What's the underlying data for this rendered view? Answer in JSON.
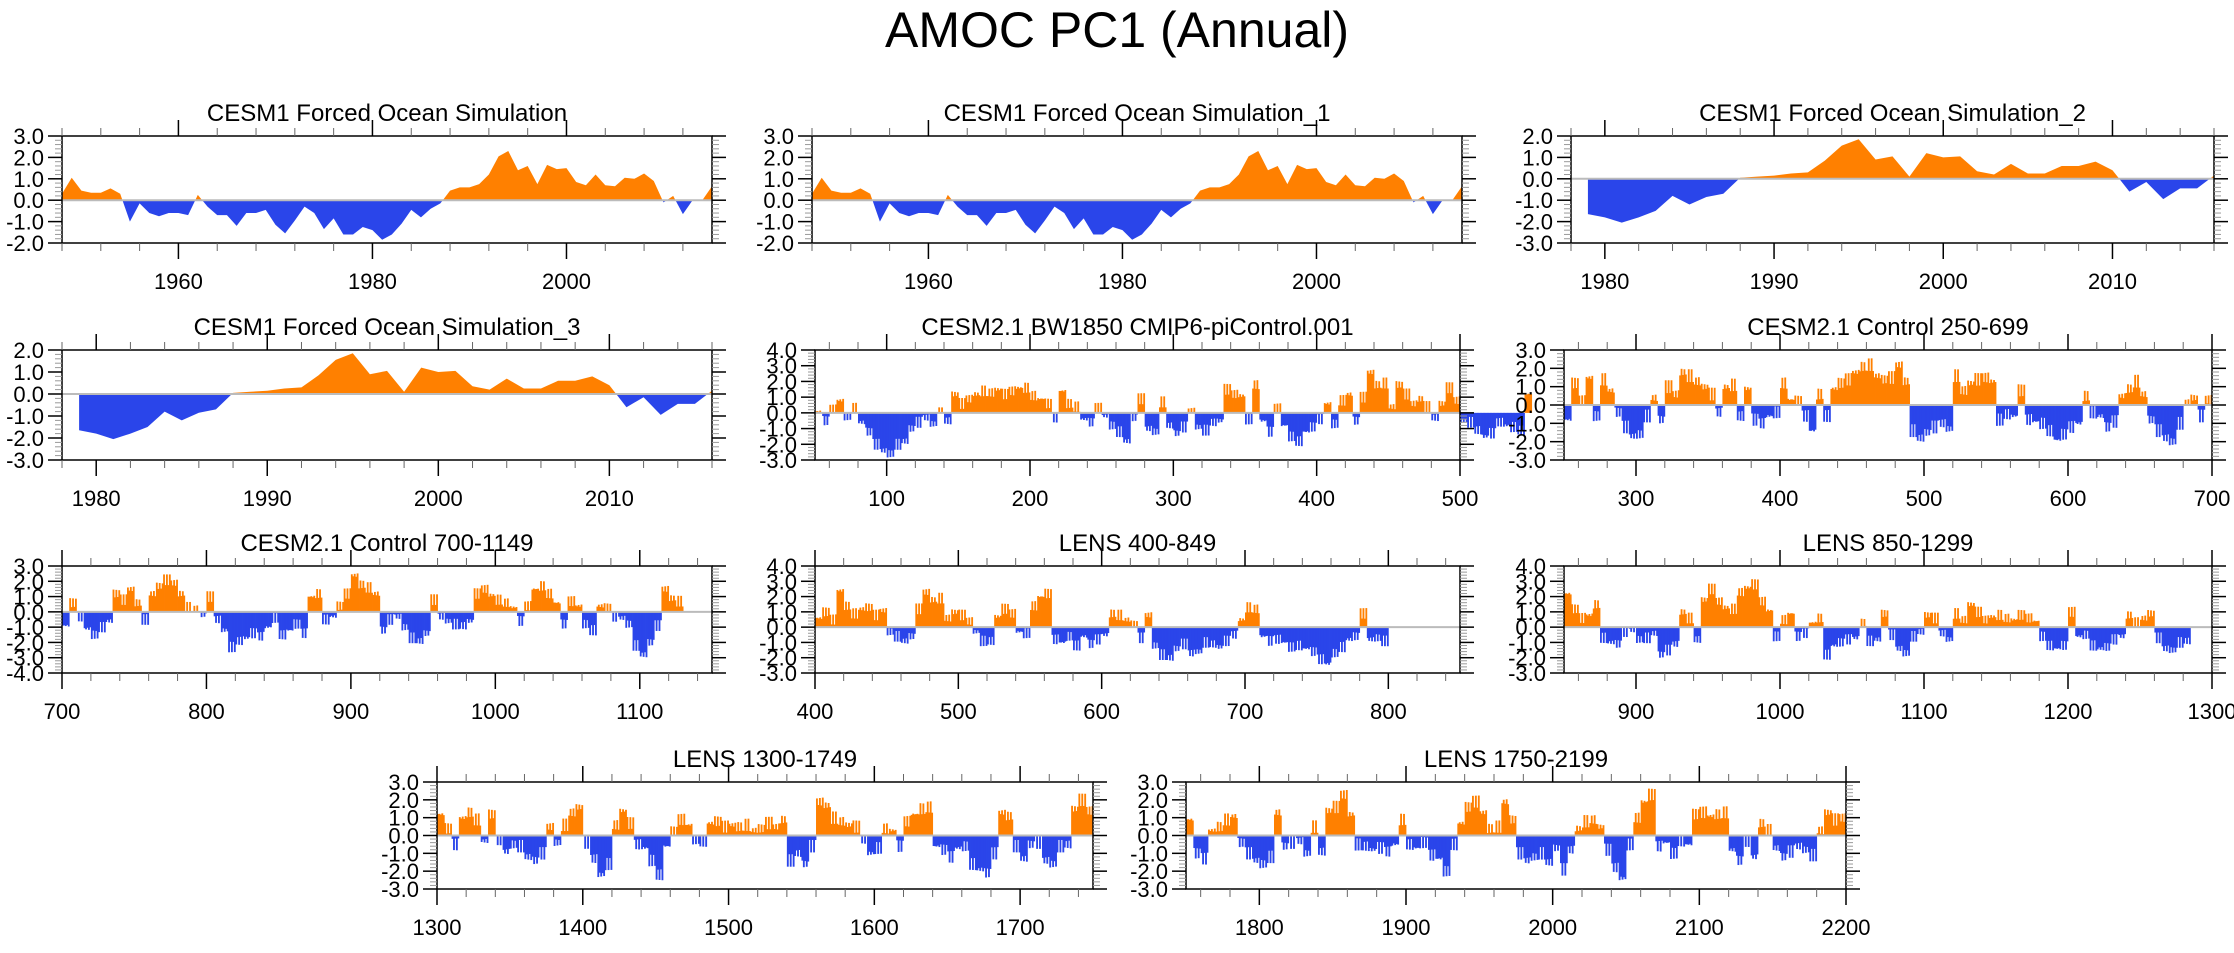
{
  "title": "AMOC PC1 (Annual)",
  "colors": {
    "positive": "#ff8000",
    "negative": "#2a45ea",
    "zero_line": "#bbbbbb",
    "frame": "#000000"
  },
  "chart_data": [
    {
      "type": "area",
      "title": "CESM1 Forced Ocean Simulation",
      "xlim": [
        1948,
        2015
      ],
      "ylim": [
        -2.0,
        3.0
      ],
      "xticks": [
        1960,
        1980,
        2000
      ],
      "yticks": [
        -2.0,
        -1.0,
        0.0,
        1.0,
        2.0,
        3.0
      ],
      "x_start": 1948,
      "x_step": 1,
      "values": [
        0.3,
        1.05,
        0.45,
        0.35,
        0.35,
        0.55,
        0.3,
        -1.0,
        -0.15,
        -0.6,
        -0.75,
        -0.6,
        -0.6,
        -0.7,
        0.25,
        -0.3,
        -0.7,
        -0.7,
        -1.2,
        -0.6,
        -0.6,
        -0.45,
        -1.15,
        -1.55,
        -0.95,
        -0.3,
        -0.6,
        -1.35,
        -0.85,
        -1.6,
        -1.6,
        -1.25,
        -1.4,
        -1.85,
        -1.6,
        -1.1,
        -0.45,
        -0.8,
        -0.4,
        -0.15,
        0.45,
        0.6,
        0.6,
        0.75,
        1.2,
        2.05,
        2.3,
        1.4,
        1.6,
        0.75,
        1.65,
        1.45,
        1.5,
        0.85,
        0.7,
        1.2,
        0.7,
        0.65,
        1.05,
        1.0,
        1.25,
        0.9,
        -0.1,
        0.2,
        -0.65,
        0.0,
        0.0,
        0.65
      ]
    },
    {
      "type": "area",
      "title": "CESM1 Forced Ocean Simulation_1",
      "xlim": [
        1948,
        2015
      ],
      "ylim": [
        -2.0,
        3.0
      ],
      "xticks": [
        1960,
        1980,
        2000
      ],
      "yticks": [
        -2.0,
        -1.0,
        0.0,
        1.0,
        2.0,
        3.0
      ],
      "x_start": 1948,
      "x_step": 1,
      "values": [
        0.3,
        1.05,
        0.45,
        0.35,
        0.35,
        0.55,
        0.3,
        -1.0,
        -0.15,
        -0.6,
        -0.75,
        -0.6,
        -0.6,
        -0.7,
        0.25,
        -0.3,
        -0.7,
        -0.7,
        -1.2,
        -0.6,
        -0.6,
        -0.45,
        -1.15,
        -1.55,
        -0.95,
        -0.3,
        -0.6,
        -1.35,
        -0.85,
        -1.6,
        -1.6,
        -1.25,
        -1.4,
        -1.85,
        -1.6,
        -1.1,
        -0.45,
        -0.8,
        -0.4,
        -0.15,
        0.45,
        0.6,
        0.6,
        0.75,
        1.2,
        2.05,
        2.3,
        1.4,
        1.6,
        0.75,
        1.65,
        1.45,
        1.5,
        0.85,
        0.7,
        1.2,
        0.7,
        0.65,
        1.05,
        1.0,
        1.25,
        0.9,
        -0.1,
        0.2,
        -0.65,
        0.0,
        0.0,
        0.65
      ]
    },
    {
      "type": "area",
      "title": "CESM1 Forced Ocean Simulation_2",
      "xlim": [
        1978,
        2016
      ],
      "ylim": [
        -3.0,
        2.0
      ],
      "xticks": [
        1980,
        1990,
        2000,
        2010
      ],
      "yticks": [
        -3.0,
        -2.0,
        -1.0,
        0.0,
        1.0,
        2.0
      ],
      "x_start": 1979,
      "x_step": 1,
      "values": [
        -1.65,
        -1.8,
        -2.05,
        -1.8,
        -1.5,
        -0.8,
        -1.2,
        -0.85,
        -0.7,
        0.05,
        0.1,
        0.15,
        0.25,
        0.3,
        0.85,
        1.55,
        1.85,
        0.9,
        1.05,
        0.1,
        1.2,
        1.0,
        1.05,
        0.35,
        0.2,
        0.7,
        0.25,
        0.25,
        0.6,
        0.6,
        0.8,
        0.4,
        -0.6,
        -0.15,
        -0.95,
        -0.45,
        -0.45,
        0.15
      ]
    },
    {
      "type": "area",
      "title": "CESM1 Forced Ocean Simulation_3",
      "xlim": [
        1978,
        2016
      ],
      "ylim": [
        -3.0,
        2.0
      ],
      "xticks": [
        1980,
        1990,
        2000,
        2010
      ],
      "yticks": [
        -3.0,
        -2.0,
        -1.0,
        0.0,
        1.0,
        2.0
      ],
      "x_start": 1979,
      "x_step": 1,
      "values": [
        -1.65,
        -1.8,
        -2.05,
        -1.8,
        -1.5,
        -0.8,
        -1.2,
        -0.85,
        -0.7,
        0.05,
        0.1,
        0.15,
        0.25,
        0.3,
        0.85,
        1.55,
        1.85,
        0.9,
        1.05,
        0.1,
        1.2,
        1.0,
        1.05,
        0.35,
        0.2,
        0.7,
        0.25,
        0.25,
        0.6,
        0.6,
        0.8,
        0.4,
        -0.6,
        -0.15,
        -0.95,
        -0.45,
        -0.45,
        0.15
      ]
    },
    {
      "type": "bar",
      "title": "CESM2.1 BW1850 CMIP6-piControl.001",
      "xlim": [
        50,
        500
      ],
      "ylim": [
        -3.0,
        4.0
      ],
      "xticks": [
        100,
        200,
        300,
        400,
        500
      ],
      "yticks": [
        -3.0,
        -2.0,
        -1.0,
        0.0,
        1.0,
        2.0,
        3.0,
        4.0
      ],
      "x_start": 50,
      "x_step": 5,
      "values": [
        0.1,
        -0.5,
        0.2,
        0.8,
        -0.2,
        0.3,
        -0.6,
        -1.2,
        -2.0,
        -2.4,
        -2.6,
        -2.0,
        -1.8,
        -1.0,
        -0.6,
        -0.3,
        -0.7,
        0.0,
        -0.5,
        1.2,
        0.6,
        0.9,
        1.2,
        1.4,
        1.3,
        1.5,
        1.2,
        1.4,
        1.6,
        1.6,
        1.1,
        0.9,
        0.6,
        -0.3,
        1.4,
        0.6,
        0.4,
        -0.4,
        -0.6,
        0.3,
        -0.2,
        -0.8,
        -1.2,
        -1.8,
        -0.3,
        0.9,
        -1.0,
        -1.2,
        0.7,
        -0.8,
        -1.3,
        -0.9,
        0.1,
        -0.9,
        -1.1,
        -0.6,
        -0.5,
        1.5,
        1.2,
        1.1,
        -0.4,
        1.8,
        -0.5,
        -1.2,
        0.3,
        -0.8,
        -1.5,
        -1.8,
        -1.2,
        -0.9,
        -0.4,
        0.6,
        -0.7,
        0.8,
        1.2,
        -0.5,
        1.0,
        2.6,
        1.8,
        1.9,
        0.4,
        1.8,
        1.2,
        0.6,
        0.9,
        0.4,
        -0.3,
        0.6,
        1.6,
        0.8,
        -0.5,
        -0.6,
        -1.1,
        -1.5,
        -1.3,
        -0.6,
        -0.8,
        -0.9,
        -1.1,
        1.2
      ]
    },
    {
      "type": "bar",
      "title": "CESM2.1 Control 250-699",
      "xlim": [
        250,
        700
      ],
      "ylim": [
        -3.0,
        3.0
      ],
      "xticks": [
        300,
        400,
        500,
        600,
        700
      ],
      "yticks": [
        -3.0,
        -2.0,
        -1.0,
        0.0,
        1.0,
        2.0,
        3.0
      ],
      "x_start": 250,
      "x_step": 5,
      "values": [
        -0.8,
        1.2,
        0.2,
        1.5,
        -0.6,
        1.4,
        0.8,
        -0.4,
        -1.2,
        -1.7,
        -1.6,
        -0.6,
        0.4,
        -0.8,
        1.0,
        0.6,
        1.8,
        1.6,
        1.3,
        1.0,
        0.6,
        -0.4,
        1.0,
        1.1,
        -0.6,
        0.9,
        -0.8,
        -1.0,
        -0.6,
        -0.4,
        1.2,
        0.3,
        0.2,
        -0.6,
        -1.4,
        0.6,
        -0.6,
        0.9,
        1.2,
        1.4,
        1.8,
        2.1,
        2.2,
        1.6,
        1.4,
        1.5,
        2.2,
        1.3,
        -1.4,
        -1.8,
        -1.5,
        -1.2,
        -1.0,
        -1.3,
        1.6,
        0.8,
        1.2,
        1.4,
        1.5,
        1.3,
        -0.8,
        -0.5,
        -0.6,
        0.8,
        -0.8,
        -0.9,
        -1.0,
        -1.4,
        -1.9,
        -1.6,
        -1.2,
        -1.0,
        0.5,
        -0.4,
        -0.6,
        -1.2,
        -0.9,
        0.5,
        0.9,
        1.3,
        0.6,
        -0.8,
        -1.4,
        -1.8,
        -2.0,
        -1.0,
        0.1,
        0.4,
        -0.6,
        0.3
      ]
    },
    {
      "type": "bar",
      "title": "CESM2.1 Control 700-1149",
      "xlim": [
        700,
        1150
      ],
      "ylim": [
        -4.0,
        3.0
      ],
      "xticks": [
        700,
        800,
        900,
        1000,
        1100
      ],
      "yticks": [
        -4.0,
        -3.0,
        -2.0,
        -1.0,
        0.0,
        1.0,
        2.0,
        3.0
      ],
      "x_start": 700,
      "x_step": 5,
      "values": [
        -0.9,
        0.6,
        -0.3,
        -1.1,
        -1.5,
        -1.0,
        -0.6,
        1.2,
        0.8,
        1.5,
        0.6,
        -0.5,
        1.2,
        1.7,
        2.1,
        1.9,
        1.2,
        0.3,
        0.2,
        -0.2,
        1.0,
        -0.5,
        -1.2,
        -2.3,
        -1.9,
        -1.7,
        -1.4,
        -1.6,
        -1.0,
        -0.4,
        -1.5,
        -1.2,
        -0.8,
        -1.4,
        1.0,
        1.2,
        -0.5,
        -0.3,
        0.4,
        1.2,
        2.4,
        1.8,
        1.6,
        1.2,
        -1.2,
        -0.5,
        -0.3,
        -1.0,
        -1.7,
        -1.9,
        -1.4,
        0.8,
        -0.3,
        -0.6,
        -0.8,
        -0.9,
        -0.6,
        1.2,
        1.5,
        1.1,
        0.8,
        0.6,
        0.3,
        -0.6,
        0.4,
        1.5,
        1.7,
        1.2,
        0.6,
        -0.8,
        0.7,
        0.4,
        -0.8,
        -1.2,
        0.4,
        0.3,
        -0.3,
        -0.4,
        -0.8,
        -2.2,
        -2.8,
        -2.0,
        -0.9,
        1.5,
        0.9,
        0.7
      ]
    },
    {
      "type": "bar",
      "title": "LENS 400-849",
      "xlim": [
        400,
        850
      ],
      "ylim": [
        -3.0,
        4.0
      ],
      "xticks": [
        400,
        500,
        600,
        700,
        800
      ],
      "yticks": [
        -3.0,
        -2.0,
        -1.0,
        0.0,
        1.0,
        2.0,
        3.0,
        4.0
      ],
      "x_start": 400,
      "x_step": 5,
      "values": [
        0.6,
        1.0,
        0.5,
        2.4,
        1.4,
        0.9,
        1.2,
        1.3,
        0.8,
        1.1,
        -0.3,
        -0.6,
        -0.9,
        -0.6,
        1.2,
        2.3,
        1.8,
        1.9,
        0.6,
        1.0,
        0.8,
        0.4,
        -0.3,
        -0.9,
        -0.9,
        0.7,
        1.2,
        0.9,
        -0.3,
        -0.4,
        1.4,
        2.0,
        2.2,
        -0.8,
        -1.0,
        -0.6,
        -1.2,
        -0.6,
        -1.1,
        -0.8,
        -0.5,
        0.9,
        0.8,
        0.5,
        0.2,
        -0.7,
        0.8,
        -1.2,
        -1.8,
        -2.0,
        -1.4,
        -1.1,
        -1.7,
        -1.6,
        -1.0,
        -1.1,
        -1.3,
        -0.9,
        -0.5,
        0.5,
        1.3,
        1.2,
        -0.6,
        -0.9,
        -0.8,
        -1.0,
        -1.3,
        -1.2,
        -1.4,
        -1.6,
        -2.1,
        -2.4,
        -1.7,
        -1.3,
        -0.8,
        -0.6,
        0.9,
        -0.8,
        -0.7,
        -0.9
      ]
    },
    {
      "type": "bar",
      "title": "LENS 850-1299",
      "xlim": [
        850,
        1300
      ],
      "ylim": [
        -3.0,
        4.0
      ],
      "xticks": [
        900,
        1000,
        1100,
        1200,
        1300
      ],
      "yticks": [
        -3.0,
        -2.0,
        -1.0,
        0.0,
        1.0,
        2.0,
        3.0,
        4.0
      ],
      "x_start": 850,
      "x_step": 5,
      "values": [
        2.2,
        1.2,
        0.6,
        0.8,
        1.5,
        -0.7,
        -1.0,
        -1.1,
        -0.3,
        -0.2,
        -0.8,
        -0.7,
        -0.4,
        -1.8,
        -1.5,
        -1.1,
        1.0,
        0.6,
        -0.8,
        1.8,
        2.5,
        1.7,
        1.3,
        1.2,
        2.3,
        2.6,
        2.8,
        1.7,
        1.1,
        -0.6,
        0.5,
        0.9,
        -0.6,
        -0.4,
        0.3,
        0.6,
        -1.8,
        -1.2,
        -1.0,
        -0.8,
        -0.7,
        0.3,
        -0.9,
        -0.8,
        0.9,
        -0.5,
        -1.4,
        -1.7,
        -0.6,
        -0.3,
        0.8,
        0.6,
        -0.4,
        -0.8,
        0.9,
        0.5,
        1.5,
        1.0,
        0.5,
        0.7,
        0.8,
        0.6,
        0.5,
        0.8,
        0.6,
        0.4,
        -0.6,
        -1.2,
        -1.4,
        -1.2,
        1.0,
        -0.6,
        -0.5,
        -1.2,
        -1.4,
        -1.3,
        -0.8,
        -0.6,
        0.8,
        0.3,
        0.6,
        0.9,
        -0.7,
        -1.4,
        -1.5,
        -1.0,
        -0.9
      ]
    },
    {
      "type": "bar",
      "title": "LENS 1300-1749",
      "xlim": [
        1300,
        1750
      ],
      "ylim": [
        -3.0,
        3.0
      ],
      "xticks": [
        1300,
        1400,
        1500,
        1600,
        1700
      ],
      "yticks": [
        -3.0,
        -2.0,
        -1.0,
        0.0,
        1.0,
        2.0,
        3.0
      ],
      "x_start": 1300,
      "x_step": 5,
      "values": [
        1.2,
        0.4,
        -0.5,
        1.0,
        1.3,
        0.9,
        -0.3,
        1.2,
        -0.2,
        -0.9,
        -0.5,
        -0.6,
        -1.2,
        -1.4,
        -1.0,
        0.5,
        -0.4,
        0.6,
        1.3,
        1.6,
        -0.4,
        -1.3,
        -2.2,
        -1.6,
        0.6,
        1.4,
        0.7,
        -0.5,
        -0.7,
        -1.4,
        -2.2,
        -0.6,
        0.2,
        0.9,
        0.6,
        -0.2,
        -0.3,
        0.7,
        0.8,
        0.5,
        0.6,
        0.5,
        0.6,
        0.3,
        0.4,
        0.7,
        0.5,
        0.9,
        -1.4,
        -1.0,
        -1.6,
        -0.6,
        1.9,
        1.7,
        1.0,
        0.8,
        0.6,
        0.5,
        -0.2,
        -1.0,
        -0.7,
        0.4,
        0.3,
        -0.6,
        0.8,
        1.2,
        1.5,
        1.6,
        -0.6,
        -0.8,
        -1.2,
        -0.7,
        -0.6,
        -1.6,
        -1.9,
        -2.1,
        -1.0,
        1.3,
        1.1,
        -0.6,
        -1.3,
        -0.5,
        -0.4,
        -1.4,
        -1.6,
        -0.6,
        -0.5,
        1.5,
        2.0,
        1.4
      ]
    },
    {
      "type": "bar",
      "title": "LENS 1750-2199",
      "xlim": [
        1750,
        2200
      ],
      "ylim": [
        -3.0,
        3.0
      ],
      "xticks": [
        1800,
        1900,
        2000,
        2100,
        2200
      ],
      "yticks": [
        -3.0,
        -2.0,
        -1.0,
        0.0,
        1.0,
        2.0,
        3.0
      ],
      "x_start": 1750,
      "x_step": 5,
      "values": [
        0.9,
        -1.0,
        -1.3,
        0.3,
        0.5,
        0.9,
        1.1,
        -0.4,
        -1.0,
        -1.4,
        -1.6,
        -1.2,
        1.3,
        -0.6,
        -0.4,
        -0.3,
        -1.0,
        0.5,
        -0.9,
        1.4,
        1.6,
        2.3,
        1.2,
        -0.5,
        -0.6,
        -0.8,
        -0.7,
        -0.9,
        -0.5,
        0.9,
        -0.5,
        -0.7,
        -0.4,
        -1.1,
        -1.3,
        -2.0,
        -0.5,
        0.7,
        1.6,
        1.9,
        1.3,
        0.4,
        0.5,
        1.9,
        0.9,
        -1.0,
        -1.4,
        -1.2,
        -1.0,
        -1.5,
        -0.7,
        -1.9,
        -0.8,
        0.4,
        0.8,
        0.9,
        0.5,
        -0.8,
        -1.8,
        -2.4,
        -0.5,
        1.0,
        1.9,
        2.3,
        -0.6,
        -0.4,
        -1.0,
        -0.3,
        -0.5,
        1.2,
        1.3,
        1.1,
        1.2,
        1.3,
        -0.8,
        -1.4,
        -0.3,
        -1.2,
        0.7,
        0.3,
        -0.7,
        -1.2,
        -0.9,
        -0.6,
        -0.8,
        -1.1,
        0.3,
        1.3,
        0.9,
        1.0
      ]
    }
  ]
}
